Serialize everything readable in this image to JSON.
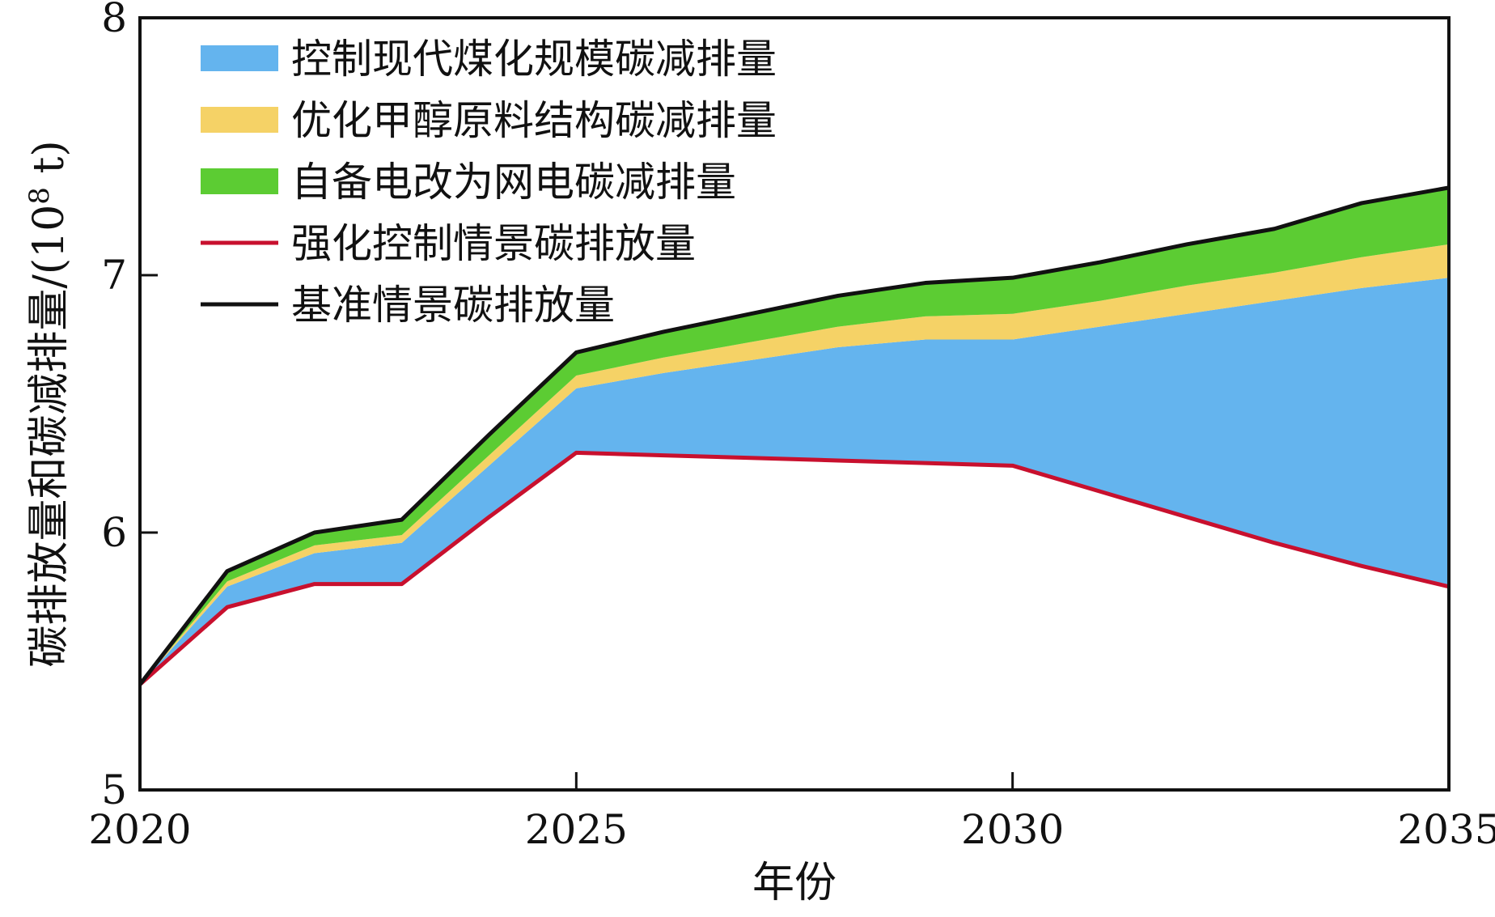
{
  "chart_data": {
    "type": "area",
    "title": "",
    "xlabel": "年份",
    "ylabel": "碳排放量和碳减排量/(10",
    "ylabel_sup": "8",
    "ylabel_tail": " t)",
    "xlim": [
      2020,
      2035
    ],
    "ylim": [
      5,
      8
    ],
    "xticks": [
      2020,
      2025,
      2030,
      2035
    ],
    "xtick_labels": [
      "2020",
      "2025",
      "2030",
      "2035"
    ],
    "yticks": [
      5,
      6,
      7,
      8
    ],
    "ytick_labels": [
      "5",
      "6",
      "7",
      "8"
    ],
    "grid": false,
    "legend_position": "top-left",
    "x": [
      2020,
      2021,
      2022,
      2023,
      2024,
      2025,
      2026,
      2027,
      2028,
      2029,
      2030,
      2031,
      2032,
      2033,
      2034,
      2035
    ],
    "series": [
      {
        "name": "强化控制情景碳排放量",
        "kind": "line",
        "color": "#c8102e",
        "values": [
          5.41,
          5.71,
          5.8,
          5.8,
          6.06,
          6.31,
          6.3,
          6.29,
          6.28,
          6.27,
          6.26,
          6.16,
          6.06,
          5.96,
          5.87,
          5.79
        ]
      },
      {
        "name": "控制现代煤化规模碳减排量",
        "kind": "area",
        "color": "#64b4ee",
        "values": [
          0.0,
          0.08,
          0.12,
          0.16,
          0.2,
          0.25,
          0.32,
          0.38,
          0.44,
          0.48,
          0.49,
          0.64,
          0.79,
          0.94,
          1.08,
          1.2
        ]
      },
      {
        "name": "优化甲醇原料结构碳减排量",
        "kind": "area",
        "color": "#f5d266",
        "values": [
          0.0,
          0.02,
          0.03,
          0.03,
          0.04,
          0.05,
          0.06,
          0.07,
          0.08,
          0.09,
          0.1,
          0.1,
          0.11,
          0.11,
          0.12,
          0.13
        ]
      },
      {
        "name": "自备电改为网电碳减排量",
        "kind": "area",
        "color": "#5ccc33",
        "values": [
          0.0,
          0.04,
          0.05,
          0.06,
          0.08,
          0.09,
          0.1,
          0.11,
          0.12,
          0.13,
          0.14,
          0.15,
          0.16,
          0.17,
          0.21,
          0.22
        ]
      },
      {
        "name": "基准情景碳排放量",
        "kind": "line",
        "color": "#111111",
        "values": [
          5.41,
          5.85,
          6.0,
          6.05,
          6.38,
          6.7,
          6.78,
          6.85,
          6.92,
          6.97,
          6.99,
          7.05,
          7.12,
          7.18,
          7.28,
          7.34
        ]
      }
    ]
  }
}
